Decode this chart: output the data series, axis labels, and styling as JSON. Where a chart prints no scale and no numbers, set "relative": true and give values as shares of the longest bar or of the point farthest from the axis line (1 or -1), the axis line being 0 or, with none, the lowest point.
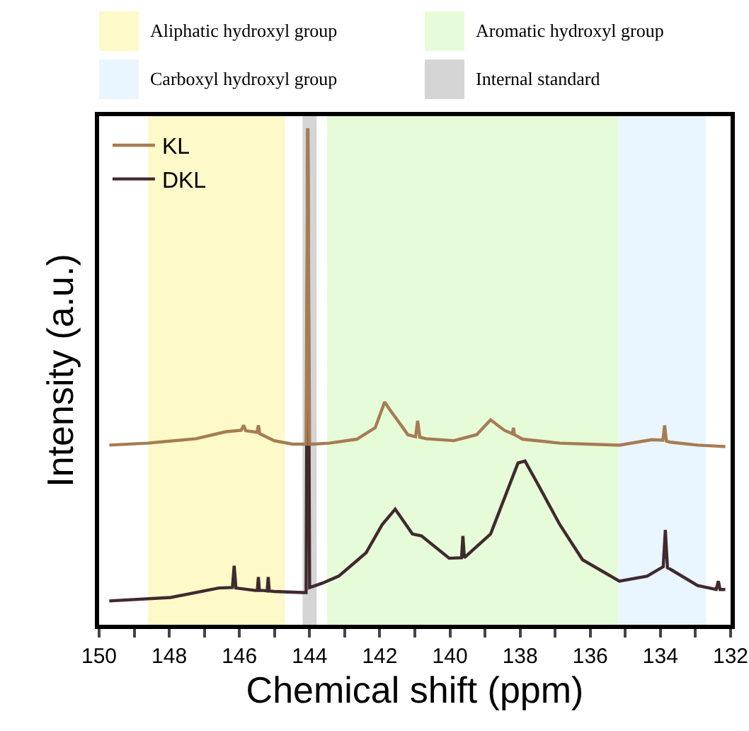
{
  "chart_data": {
    "type": "line",
    "relative": true,
    "xlabel": "Chemical shift (ppm)",
    "ylabel": "Intensity (a.u.)",
    "xlim": [
      150,
      132
    ],
    "xticks": [
      150,
      {
        "value": 149,
        "label": null
      },
      148,
      {
        "value": 147,
        "label": null
      },
      146,
      {
        "value": 145,
        "label": null
      },
      144,
      {
        "value": 143,
        "label": null
      },
      142,
      {
        "value": 141,
        "label": null
      },
      140,
      {
        "value": 139,
        "label": null
      },
      138,
      {
        "value": 137,
        "label": null
      },
      136,
      {
        "value": 135,
        "label": null
      },
      134,
      {
        "value": 133,
        "label": null
      },
      132
    ],
    "grid": false,
    "legend": "top left",
    "tick_labels": "x",
    "line_style": "solid",
    "marker": "none",
    "bands": [
      {
        "axis": "x",
        "from": 148.6,
        "to": 144.7,
        "label": "Aliphatic hydroxyl group",
        "color": "#fdf9c8"
      },
      {
        "axis": "x",
        "from": 143.5,
        "to": 135.2,
        "label": "Aromatic hydroxyl group",
        "color": "#e6fcd8"
      },
      {
        "axis": "x",
        "from": 135.2,
        "to": 132.7,
        "label": "Carboxyl hydroxyl group",
        "color": "#e9f5ff"
      },
      {
        "axis": "x",
        "from": 144.2,
        "to": 143.8,
        "label": "Internal standard",
        "color": "#d5d5d5"
      }
    ],
    "series": [
      {
        "name": "KL",
        "color": "#a67c52",
        "x": [
          149.71,
          148.62,
          147.24,
          146.39,
          145.95,
          145.88,
          145.82,
          145.5,
          145.46,
          145.42,
          145.01,
          144.49,
          144.1,
          144.05,
          144.0,
          143.9,
          143.44,
          142.65,
          142.13,
          141.86,
          141.73,
          141.34,
          141.2,
          140.98,
          140.92,
          140.86,
          140.68,
          139.89,
          139.24,
          138.84,
          138.45,
          138.22,
          138.19,
          138.16,
          137.93,
          136.87,
          135.17,
          134.25,
          133.93,
          133.88,
          133.83,
          133.72,
          132.94,
          132.15
        ],
        "values": [
          0.362,
          0.366,
          0.375,
          0.389,
          0.392,
          0.402,
          0.391,
          0.388,
          0.402,
          0.385,
          0.371,
          0.364,
          0.364,
          1,
          0.364,
          0.364,
          0.366,
          0.374,
          0.397,
          0.449,
          0.435,
          0.397,
          0.383,
          0.379,
          0.411,
          0.378,
          0.375,
          0.371,
          0.383,
          0.413,
          0.392,
          0.385,
          0.397,
          0.383,
          0.374,
          0.366,
          0.362,
          0.373,
          0.372,
          0.402,
          0.37,
          0.368,
          0.362,
          0.359
        ]
      },
      {
        "name": "DKL",
        "color": "#40292f",
        "x": [
          149.71,
          147.96,
          146.59,
          146.2,
          146.15,
          146.1,
          145.54,
          145.49,
          145.46,
          145.43,
          145.31,
          145.21,
          145.18,
          145.15,
          145.01,
          144.22,
          144.1,
          144.05,
          144.0,
          143.83,
          143.63,
          143.17,
          142.39,
          141.93,
          141.56,
          141.07,
          140.81,
          140.02,
          139.67,
          139.63,
          139.59,
          138.84,
          138.06,
          137.86,
          137.53,
          136.87,
          136.22,
          135.17,
          134.38,
          133.92,
          133.86,
          133.8,
          133.72,
          132.94,
          132.41,
          132.35,
          132.3,
          132.15
        ],
        "values": [
          0.048,
          0.055,
          0.074,
          0.075,
          0.119,
          0.074,
          0.069,
          0.069,
          0.096,
          0.069,
          0.069,
          0.068,
          0.096,
          0.068,
          0.067,
          0.065,
          0.065,
          1,
          0.075,
          0.079,
          0.084,
          0.098,
          0.145,
          0.202,
          0.233,
          0.183,
          0.179,
          0.134,
          0.135,
          0.179,
          0.135,
          0.183,
          0.326,
          0.33,
          0.288,
          0.202,
          0.131,
          0.088,
          0.098,
          0.117,
          0.191,
          0.115,
          0.112,
          0.079,
          0.071,
          0.088,
          0.071,
          0.071
        ]
      }
    ]
  }
}
